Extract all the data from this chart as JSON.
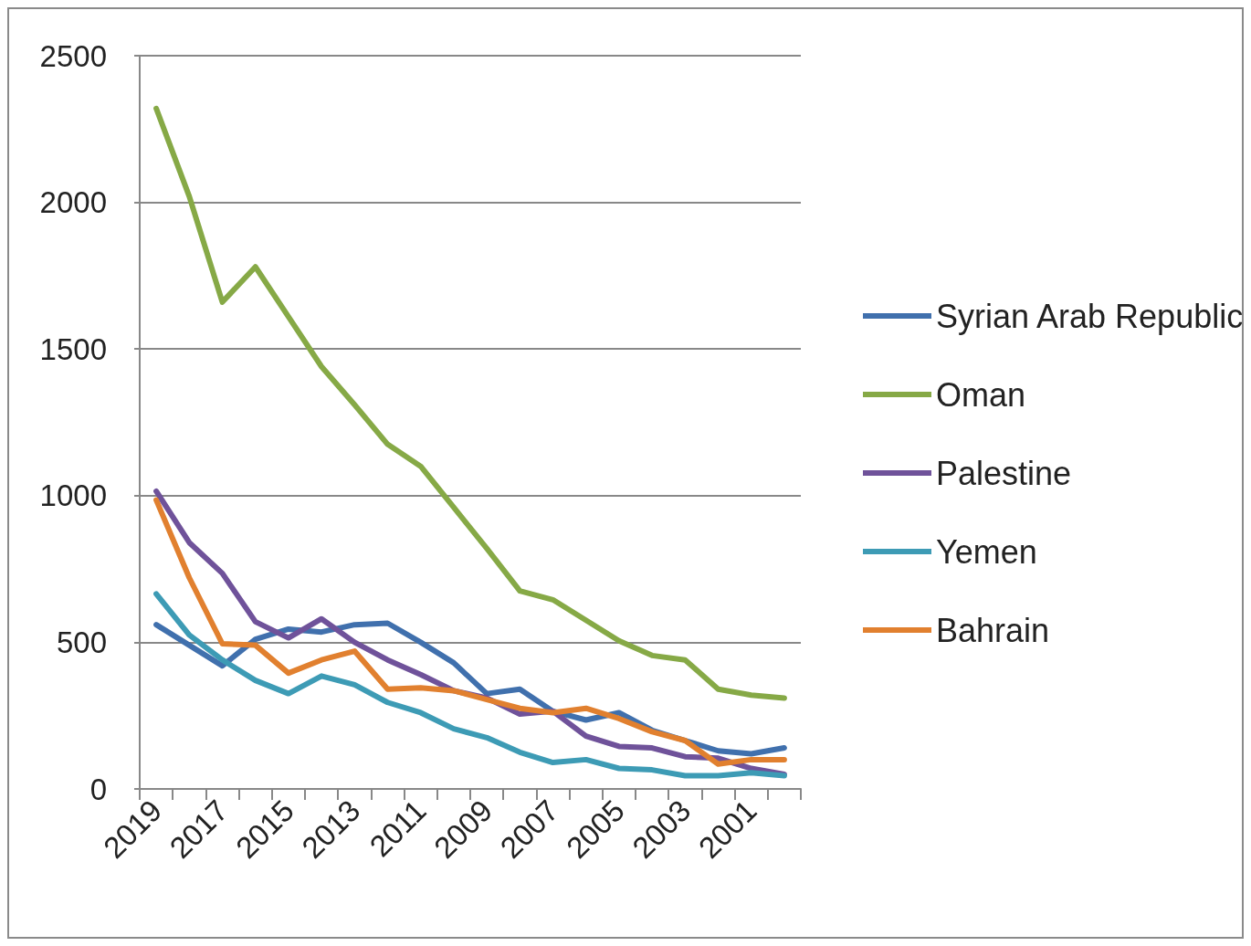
{
  "chart_data": {
    "type": "line",
    "categories": [
      "2019",
      null,
      "2017",
      null,
      "2015",
      null,
      "2013",
      null,
      "2011",
      null,
      "2009",
      null,
      "2007",
      null,
      "2005",
      null,
      "2003",
      null,
      "2001",
      null
    ],
    "series": [
      {
        "name": "Syrian Arab Republic",
        "color": "#4070ad",
        "values": [
          560,
          490,
          420,
          510,
          545,
          535,
          560,
          565,
          500,
          430,
          325,
          340,
          265,
          235,
          260,
          200,
          165,
          130,
          120,
          140
        ]
      },
      {
        "name": "Oman",
        "color": "#86a946",
        "values": [
          2320,
          2020,
          1660,
          1780,
          1610,
          1440,
          1310,
          1175,
          1100,
          960,
          820,
          675,
          645,
          575,
          505,
          455,
          440,
          340,
          320,
          310
        ]
      },
      {
        "name": "Palestine",
        "color": "#6f529a",
        "values": [
          1015,
          840,
          735,
          570,
          515,
          580,
          500,
          440,
          390,
          335,
          310,
          255,
          265,
          180,
          145,
          140,
          110,
          105,
          70,
          50
        ]
      },
      {
        "name": "Yemen",
        "color": "#3d9bb5",
        "values": [
          665,
          525,
          440,
          370,
          325,
          385,
          355,
          295,
          260,
          205,
          175,
          125,
          90,
          100,
          70,
          65,
          45,
          45,
          55,
          45
        ]
      },
      {
        "name": "Bahrain",
        "color": "#e1802f",
        "values": [
          985,
          720,
          495,
          490,
          395,
          440,
          470,
          340,
          345,
          335,
          305,
          275,
          260,
          275,
          240,
          195,
          165,
          85,
          100,
          100
        ]
      }
    ],
    "ylim": [
      0,
      2500
    ],
    "yticks": [
      0,
      500,
      1000,
      1500,
      2000,
      2500
    ],
    "grid": "y",
    "legend": "right",
    "marker": "none",
    "line_style": "solid"
  }
}
